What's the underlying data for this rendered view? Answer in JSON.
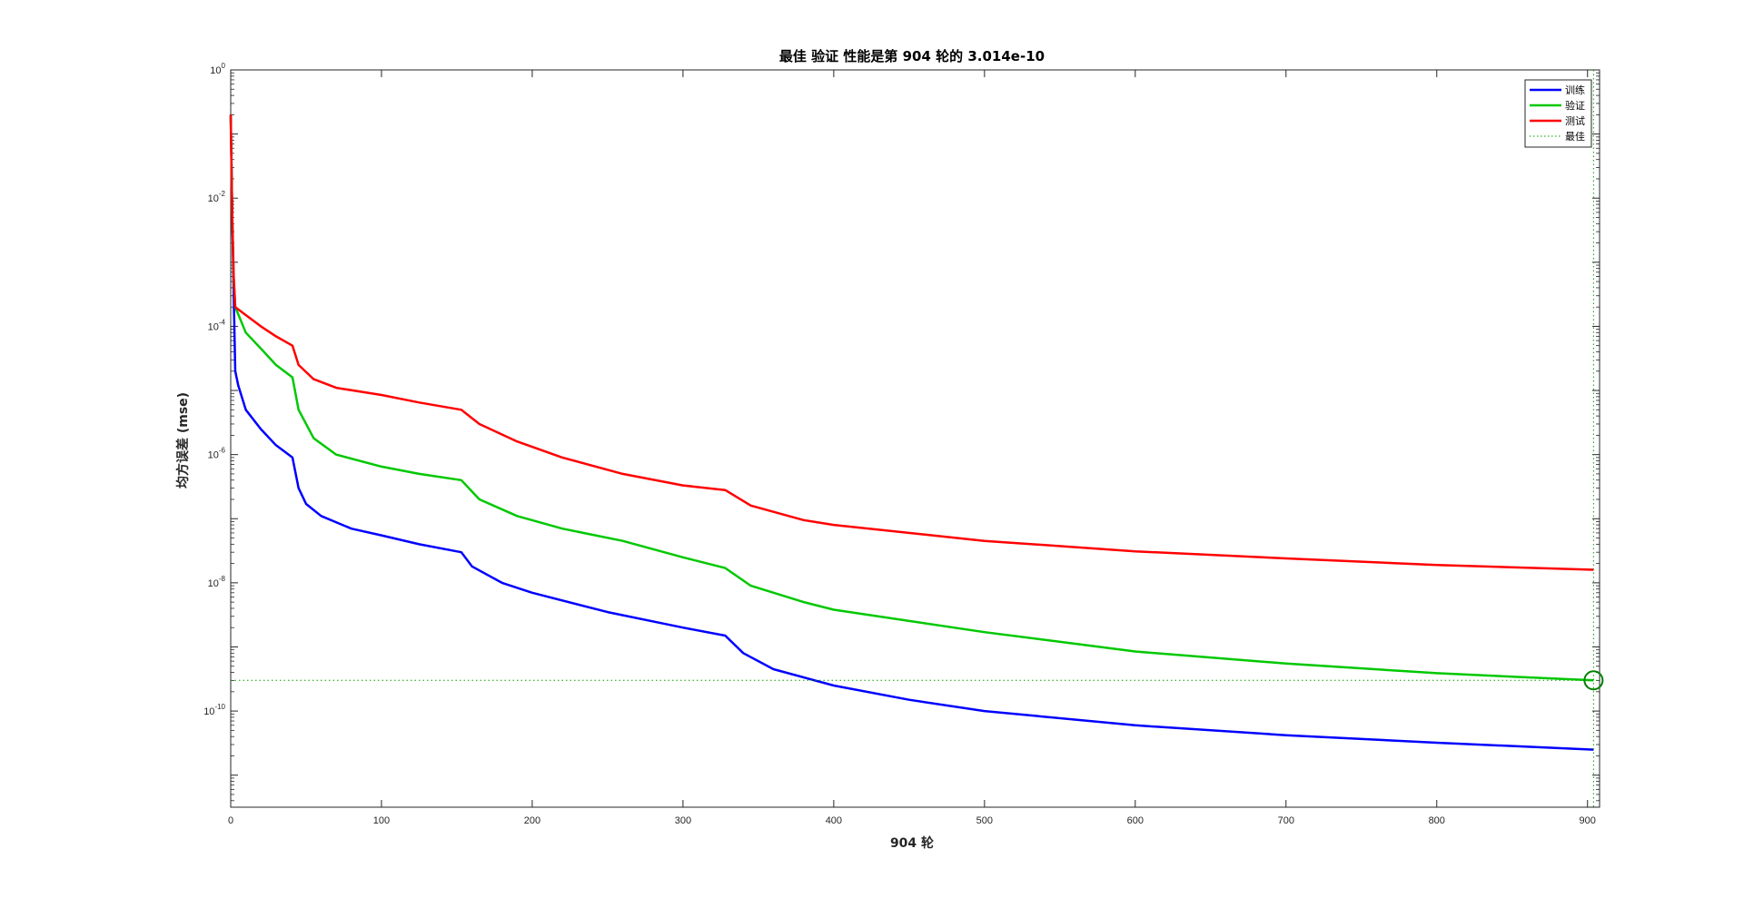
{
  "chart_data": {
    "type": "line",
    "title": "最佳 验证 性能是第 904 轮的 3.014e-10",
    "xlabel": "904 轮",
    "ylabel": "均方误差 (mse)",
    "xlim": [
      0,
      904
    ],
    "ylim_exp": [
      -11,
      0
    ],
    "yscale": "log",
    "xticks": [
      0,
      100,
      200,
      300,
      400,
      500,
      600,
      700,
      800,
      900
    ],
    "yticks": [
      {
        "base": "10",
        "exp": "0"
      },
      {
        "base": "10",
        "exp": "-2"
      },
      {
        "base": "10",
        "exp": "-4"
      },
      {
        "base": "10",
        "exp": "-6"
      },
      {
        "base": "10",
        "exp": "-8"
      },
      {
        "base": "10",
        "exp": "-10"
      }
    ],
    "legend_position": "top-right",
    "series": [
      {
        "name": "训练",
        "color": "#0000ff",
        "points": [
          [
            0,
            0.2
          ],
          [
            1,
            0.005
          ],
          [
            2,
            0.0003
          ],
          [
            3,
            2e-05
          ],
          [
            5,
            1.2e-05
          ],
          [
            10,
            5e-06
          ],
          [
            20,
            2.5e-06
          ],
          [
            30,
            1.4e-06
          ],
          [
            41,
            9e-07
          ],
          [
            45,
            3e-07
          ],
          [
            50,
            1.7e-07
          ],
          [
            60,
            1.1e-07
          ],
          [
            80,
            7e-08
          ],
          [
            100,
            5.5e-08
          ],
          [
            125,
            4e-08
          ],
          [
            153,
            3e-08
          ],
          [
            160,
            1.8e-08
          ],
          [
            180,
            1e-08
          ],
          [
            200,
            7e-09
          ],
          [
            250,
            3.5e-09
          ],
          [
            300,
            2e-09
          ],
          [
            328,
            1.5e-09
          ],
          [
            340,
            8e-10
          ],
          [
            360,
            4.5e-10
          ],
          [
            400,
            2.5e-10
          ],
          [
            450,
            1.5e-10
          ],
          [
            500,
            1e-10
          ],
          [
            600,
            6e-11
          ],
          [
            700,
            4.2e-11
          ],
          [
            800,
            3.2e-11
          ],
          [
            904,
            2.5e-11
          ]
        ]
      },
      {
        "name": "验证",
        "color": "#00c800",
        "points": [
          [
            0,
            0.2
          ],
          [
            1,
            0.005
          ],
          [
            2,
            0.0005
          ],
          [
            3,
            0.0002
          ],
          [
            10,
            8e-05
          ],
          [
            20,
            4.5e-05
          ],
          [
            30,
            2.5e-05
          ],
          [
            41,
            1.6e-05
          ],
          [
            45,
            5e-06
          ],
          [
            55,
            1.8e-06
          ],
          [
            70,
            1e-06
          ],
          [
            100,
            6.5e-07
          ],
          [
            125,
            5e-07
          ],
          [
            153,
            4e-07
          ],
          [
            165,
            2e-07
          ],
          [
            190,
            1.1e-07
          ],
          [
            220,
            7e-08
          ],
          [
            260,
            4.5e-08
          ],
          [
            300,
            2.5e-08
          ],
          [
            328,
            1.7e-08
          ],
          [
            345,
            9e-09
          ],
          [
            380,
            5e-09
          ],
          [
            400,
            3.8e-09
          ],
          [
            500,
            1.7e-09
          ],
          [
            600,
            8.5e-10
          ],
          [
            700,
            5.5e-10
          ],
          [
            800,
            3.9e-10
          ],
          [
            904,
            3.014e-10
          ]
        ]
      },
      {
        "name": "测试",
        "color": "#ff0000",
        "points": [
          [
            0,
            0.2
          ],
          [
            1,
            0.005
          ],
          [
            2,
            0.0006
          ],
          [
            3,
            0.0002
          ],
          [
            10,
            0.00015
          ],
          [
            20,
            0.0001
          ],
          [
            30,
            7e-05
          ],
          [
            41,
            5e-05
          ],
          [
            45,
            2.5e-05
          ],
          [
            55,
            1.5e-05
          ],
          [
            70,
            1.1e-05
          ],
          [
            100,
            8.5e-06
          ],
          [
            125,
            6.5e-06
          ],
          [
            153,
            5e-06
          ],
          [
            165,
            3e-06
          ],
          [
            190,
            1.6e-06
          ],
          [
            220,
            9e-07
          ],
          [
            260,
            5e-07
          ],
          [
            300,
            3.3e-07
          ],
          [
            328,
            2.8e-07
          ],
          [
            345,
            1.6e-07
          ],
          [
            380,
            9.5e-08
          ],
          [
            400,
            8e-08
          ],
          [
            500,
            4.5e-08
          ],
          [
            600,
            3.1e-08
          ],
          [
            700,
            2.4e-08
          ],
          [
            800,
            1.9e-08
          ],
          [
            904,
            1.6e-08
          ]
        ]
      }
    ],
    "best": {
      "name": "最佳",
      "color": "#00a000",
      "epoch": 904,
      "value": 3.014e-10
    }
  }
}
